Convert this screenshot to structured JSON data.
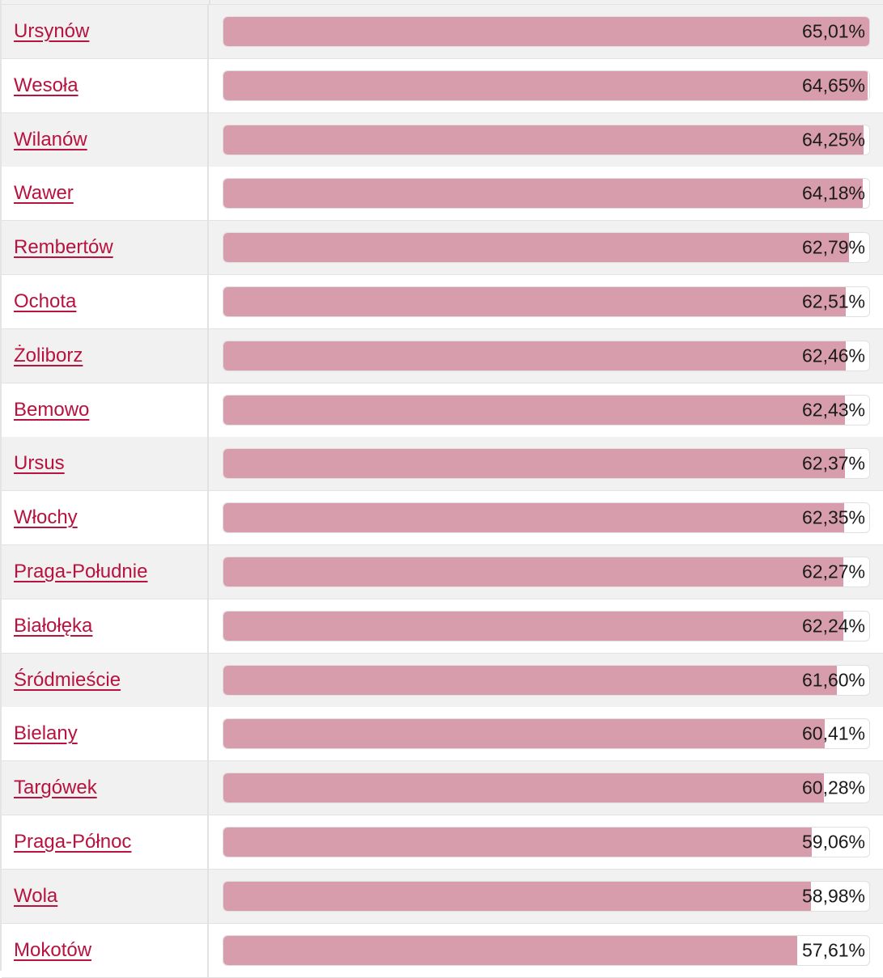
{
  "colors": {
    "link": "#b8123e",
    "bar_fill": "#d89dac",
    "row_shaded": "#f1f1f1",
    "row_plain": "#ffffff"
  },
  "chart_data": {
    "type": "bar",
    "orientation": "horizontal",
    "unit": "%",
    "scale_max": 65.01,
    "categories": [
      "Ursynów",
      "Wesoła",
      "Wilanów",
      "Wawer",
      "Rembertów",
      "Ochota",
      "Żoliborz",
      "Bemowo",
      "Ursus",
      "Włochy",
      "Praga-Południe",
      "Białołęka",
      "Śródmieście",
      "Bielany",
      "Targówek",
      "Praga-Północ",
      "Wola",
      "Mokotów"
    ],
    "values": [
      65.01,
      64.65,
      64.25,
      64.18,
      62.79,
      62.51,
      62.46,
      62.43,
      62.37,
      62.35,
      62.27,
      62.24,
      61.6,
      60.41,
      60.28,
      59.06,
      58.98,
      57.61
    ],
    "value_labels": [
      "65,01%",
      "64,65%",
      "64,25%",
      "64,18%",
      "62,79%",
      "62,51%",
      "62,46%",
      "62,43%",
      "62,37%",
      "62,35%",
      "62,27%",
      "62,24%",
      "61,60%",
      "60,41%",
      "60,28%",
      "59,06%",
      "58,98%",
      "57,61%"
    ]
  }
}
